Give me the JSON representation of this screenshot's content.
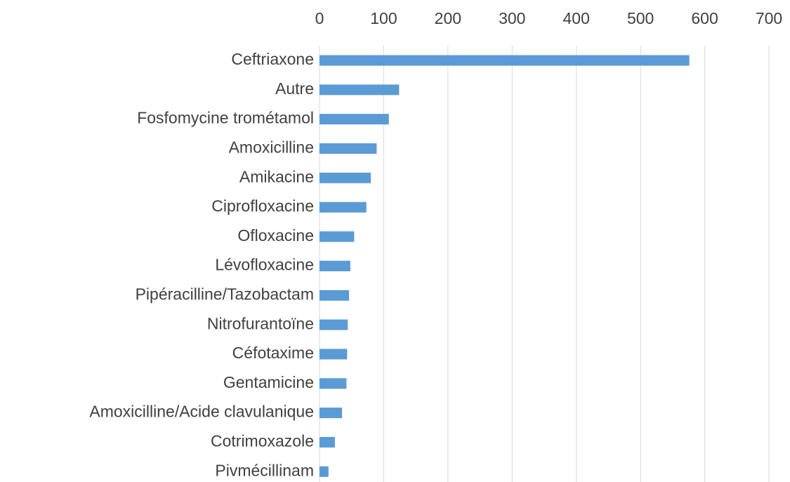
{
  "chart_data": {
    "type": "bar",
    "orientation": "horizontal",
    "categories": [
      "Ceftriaxone",
      "Autre",
      "Fosfomycine trométamol",
      "Amoxicilline",
      "Amikacine",
      "Ciprofloxacine",
      "Ofloxacine",
      "Lévofloxacine",
      "Pipéracilline/Tazobactam",
      "Nitrofurantoïne",
      "Céfotaxime",
      "Gentamicine",
      "Amoxicilline/Acide clavulanique",
      "Cotrimoxazole",
      "Pivmécillinam"
    ],
    "values": [
      576,
      124,
      108,
      89,
      80,
      73,
      54,
      48,
      46,
      44,
      43,
      42,
      35,
      24,
      14
    ],
    "color": "#5b9bd5",
    "xlim": [
      0,
      700
    ],
    "xticks": [
      0,
      100,
      200,
      300,
      400,
      500,
      600,
      700
    ],
    "grid": true
  }
}
